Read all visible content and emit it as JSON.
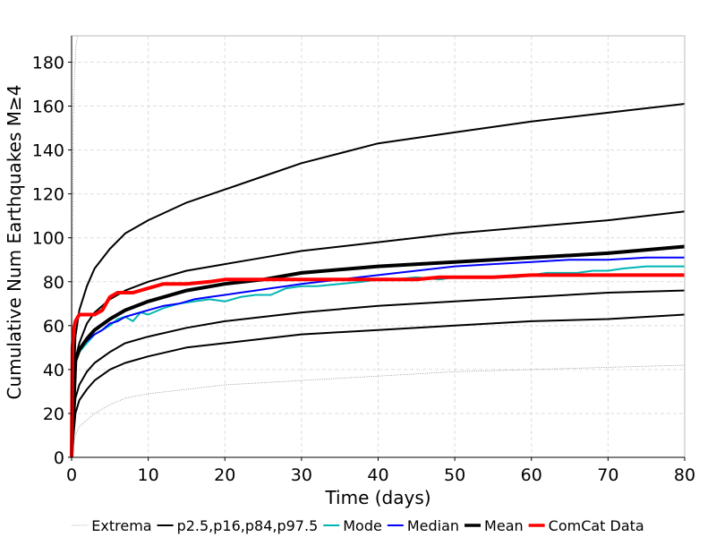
{
  "chart_data": {
    "type": "line",
    "title": "",
    "xlabel": "Time (days)",
    "ylabel": "Cumulative Num Earthquakes M≥4",
    "xlim": [
      0,
      80
    ],
    "ylim": [
      0,
      192
    ],
    "x_ticks": [
      "0",
      "10",
      "20",
      "30",
      "40",
      "50",
      "60",
      "70",
      "80"
    ],
    "y_ticks": [
      "0",
      "20",
      "40",
      "60",
      "80",
      "100",
      "120",
      "140",
      "160",
      "180"
    ],
    "grid": true,
    "legend_position": "bottom",
    "series": [
      {
        "name": "Extrema",
        "style": "dotted-thin",
        "color": "#888888",
        "lines": [
          {
            "x": [
              0,
              0.5,
              1,
              2,
              3,
              5,
              7,
              10,
              15,
              20,
              25,
              30,
              40,
              50,
              60,
              70,
              80
            ],
            "y": [
              0,
              10,
              14,
              17,
              20,
              24,
              27,
              29,
              31,
              33,
              34,
              35,
              37,
              39,
              40,
              41,
              42
            ]
          },
          {
            "x": [
              0,
              0.2,
              0.4,
              0.6,
              0.8
            ],
            "y": [
              0,
              150,
              175,
              188,
              192
            ]
          }
        ]
      },
      {
        "name": "p2.5,p16,p84,p97.5",
        "style": "solid",
        "color": "#000000",
        "lines": [
          {
            "x": [
              0,
              0.5,
              1,
              2,
              3,
              5,
              7,
              10,
              15,
              20,
              25,
              30,
              40,
              50,
              60,
              70,
              80
            ],
            "y": [
              0,
              20,
              26,
              31,
              35,
              40,
              43,
              46,
              50,
              52,
              54,
              56,
              58,
              60,
              62,
              63,
              65
            ]
          },
          {
            "x": [
              0,
              0.5,
              1,
              2,
              3,
              5,
              7,
              10,
              15,
              20,
              25,
              30,
              40,
              50,
              60,
              70,
              80
            ],
            "y": [
              0,
              27,
              33,
              39,
              43,
              48,
              52,
              55,
              59,
              62,
              64,
              66,
              69,
              71,
              73,
              75,
              76
            ]
          },
          {
            "x": [
              0,
              0.5,
              1,
              2,
              3,
              5,
              7,
              10,
              15,
              20,
              25,
              30,
              40,
              50,
              60,
              70,
              80
            ],
            "y": [
              0,
              45,
              52,
              61,
              66,
              72,
              76,
              80,
              85,
              88,
              91,
              94,
              98,
              102,
              105,
              108,
              112
            ]
          },
          {
            "x": [
              0,
              0.5,
              1,
              2,
              3,
              5,
              7,
              10,
              15,
              20,
              25,
              30,
              40,
              50,
              60,
              70,
              80
            ],
            "y": [
              0,
              55,
              67,
              78,
              86,
              95,
              102,
              108,
              116,
              122,
              128,
              134,
              143,
              148,
              153,
              157,
              161
            ]
          }
        ]
      },
      {
        "name": "Mode",
        "style": "solid",
        "color": "#00b4b4",
        "lines": [
          {
            "x": [
              0,
              0.5,
              1,
              2,
              3,
              4,
              5,
              6,
              7,
              8,
              9,
              10,
              12,
              14,
              16,
              18,
              20,
              22,
              24,
              26,
              28,
              30,
              32,
              35,
              38,
              40,
              42,
              45,
              48,
              50,
              52,
              55,
              58,
              60,
              62,
              64,
              66,
              68,
              70,
              72,
              75,
              78,
              80
            ],
            "y": [
              0,
              44,
              48,
              52,
              56,
              58,
              60,
              63,
              64,
              62,
              66,
              65,
              68,
              70,
              71,
              72,
              71,
              73,
              74,
              74,
              77,
              78,
              78,
              79,
              80,
              81,
              81,
              82,
              81,
              82,
              82,
              82,
              82,
              83,
              84,
              84,
              84,
              85,
              85,
              86,
              87,
              87,
              87
            ]
          }
        ]
      },
      {
        "name": "Median",
        "style": "solid",
        "color": "#0000ff",
        "lines": [
          {
            "x": [
              0,
              0.5,
              1,
              2,
              3,
              4,
              5,
              6,
              7,
              8,
              10,
              12,
              14,
              16,
              18,
              20,
              22,
              24,
              26,
              28,
              30,
              35,
              40,
              45,
              50,
              55,
              60,
              65,
              70,
              75,
              80
            ],
            "y": [
              0,
              44,
              49,
              53,
              56,
              58,
              61,
              62,
              64,
              65,
              67,
              69,
              70,
              72,
              73,
              74,
              75,
              76,
              77,
              78,
              79,
              81,
              83,
              85,
              87,
              88,
              89,
              90,
              90,
              91,
              91
            ]
          }
        ]
      },
      {
        "name": "Mean",
        "style": "solid-thick",
        "color": "#000000",
        "lines": [
          {
            "x": [
              0,
              0.5,
              1,
              2,
              3,
              5,
              7,
              10,
              15,
              20,
              25,
              30,
              40,
              50,
              60,
              70,
              80
            ],
            "y": [
              0,
              44,
              49,
              54,
              58,
              63,
              67,
              71,
              76,
              79,
              81,
              84,
              87,
              89,
              91,
              93,
              96
            ]
          }
        ]
      },
      {
        "name": "ComCat Data",
        "style": "solid-thick",
        "color": "#ff0000",
        "lines": [
          {
            "x": [
              0,
              0.1,
              0.3,
              0.5,
              1,
              2,
              3,
              4,
              4.5,
              5,
              6,
              8,
              10,
              12,
              15,
              18,
              20,
              25,
              30,
              35,
              40,
              45,
              48,
              50,
              55,
              60,
              70,
              80
            ],
            "y": [
              0,
              50,
              59,
              62,
              65,
              65,
              65,
              67,
              70,
              73,
              75,
              75,
              77,
              79,
              79,
              80,
              81,
              81,
              81,
              81,
              81,
              81,
              82,
              82,
              82,
              83,
              83,
              83
            ]
          }
        ]
      }
    ]
  }
}
